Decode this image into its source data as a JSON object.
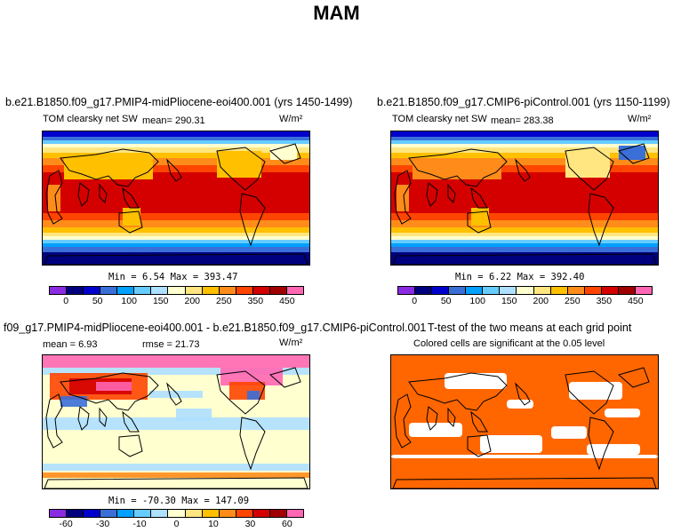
{
  "figure": {
    "title": "MAM"
  },
  "chart_data": [
    {
      "type": "heatmap",
      "title": "b.e21.B1850.f09_g17.PMIP4-midPliocene-eoi400.001 (yrs 1450-1499)",
      "subtitle": "TOM clearsky net SW",
      "units": "W/m²",
      "mean_label": "mean=",
      "mean": "290.31",
      "min_label": "Min =",
      "min": "6.54",
      "max_label": "Max =",
      "max": "393.47",
      "colorbar_ticks": [
        "0",
        "50",
        "100",
        "150",
        "200",
        "250",
        "350",
        "450"
      ],
      "colorbar_colors": [
        "#8a2be2",
        "#00007f",
        "#0000cd",
        "#3a6fd8",
        "#00a0ff",
        "#66ccff",
        "#aee0ff",
        "#ffffd0",
        "#ffe680",
        "#ffc000",
        "#ff8c1a",
        "#ff4500",
        "#d40000",
        "#a00000",
        "#ff66b3"
      ]
    },
    {
      "type": "heatmap",
      "title": "b.e21.B1850.f09_g17.CMIP6-piControl.001 (yrs 1150-1199)",
      "subtitle": "TOM clearsky net SW",
      "units": "W/m²",
      "mean_label": "mean=",
      "mean": "283.38",
      "min_label": "Min =",
      "min": "6.22",
      "max_label": "Max =",
      "max": "392.40",
      "colorbar_ticks": [
        "0",
        "50",
        "100",
        "150",
        "200",
        "250",
        "350",
        "450"
      ]
    },
    {
      "type": "heatmap",
      "title": "f09_g17.PMIP4-midPliocene-eoi400.001 - b.e21.B1850.f09_g17.CMIP6-piControl.001",
      "mean_label": "mean =",
      "mean": "6.93",
      "rmse_label": "rmse =",
      "rmse": "21.73",
      "units": "W/m²",
      "min_label": "Min =",
      "min": "-70.30",
      "max_label": "Max =",
      "max": "147.09",
      "colorbar_ticks": [
        "-60",
        "-30",
        "-10",
        "0",
        "10",
        "30",
        "60"
      ],
      "colorbar_colors": [
        "#8a2be2",
        "#00007f",
        "#0000cd",
        "#3a6fd8",
        "#00a0ff",
        "#66ccff",
        "#aee0ff",
        "#ffffd0",
        "#ffe680",
        "#ffc000",
        "#ff8c1a",
        "#ff4500",
        "#d40000",
        "#a00000",
        "#ff66b3"
      ]
    },
    {
      "type": "heatmap",
      "title": "T-test of the two means at each grid point",
      "subtitle": "Colored cells are significant at the 0.05 level",
      "significant_color": "#ff6600"
    }
  ]
}
